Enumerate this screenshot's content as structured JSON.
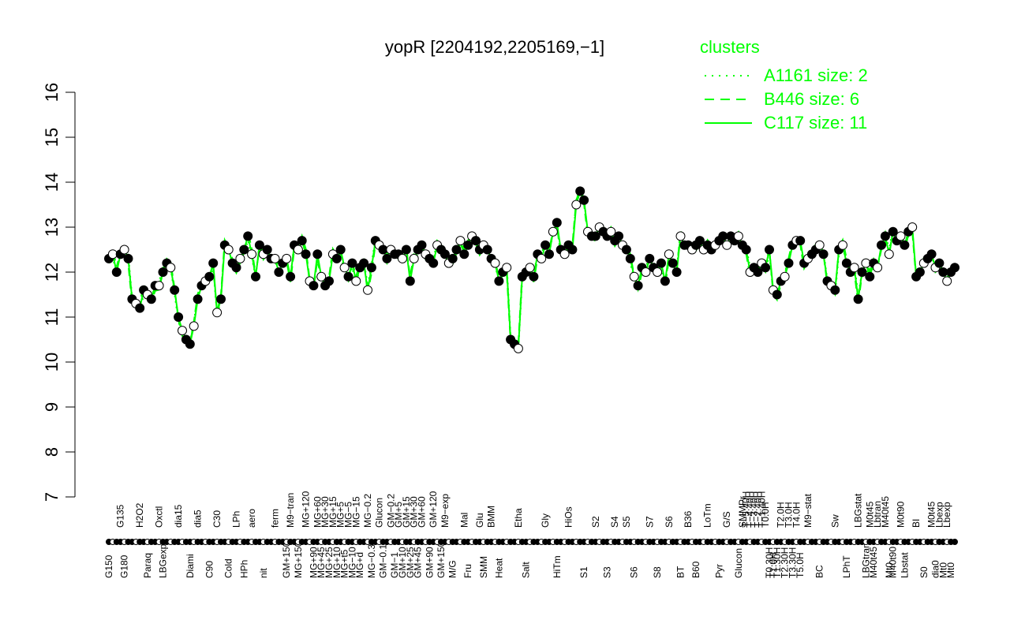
{
  "chart_data": {
    "type": "line",
    "title": "yopR [2204192,2205169,−1]",
    "xlabel": "",
    "ylabel": "",
    "ylim": [
      7,
      16
    ],
    "yticks": [
      7,
      8,
      9,
      10,
      11,
      12,
      13,
      14,
      15,
      16
    ],
    "grid": false,
    "legend": {
      "title": "clusters",
      "placement": "top-right",
      "entries": [
        {
          "label": "A1161 size: 2",
          "style": "dotted"
        },
        {
          "label": "B446 size: 6",
          "style": "dashed"
        },
        {
          "label": "C117 size: 11",
          "style": "solid"
        }
      ]
    },
    "colors": {
      "line": "#00ff00",
      "legend": "#00ff00",
      "points": "#000000"
    },
    "category_labels": [
      {
        "label": "G150",
        "i": 0,
        "row": 1
      },
      {
        "label": "G135",
        "i": 3,
        "row": 0
      },
      {
        "label": "G180",
        "i": 4,
        "row": 1
      },
      {
        "label": "H2O2",
        "i": 8,
        "row": 0
      },
      {
        "label": "Paraq",
        "i": 10,
        "row": 1
      },
      {
        "label": "Oxctl",
        "i": 13,
        "row": 0
      },
      {
        "label": "LBGexp",
        "i": 14,
        "row": 1
      },
      {
        "label": "dia15",
        "i": 18,
        "row": 0
      },
      {
        "label": "Diami",
        "i": 21,
        "row": 1
      },
      {
        "label": "dia5",
        "i": 23,
        "row": 0
      },
      {
        "label": "C90",
        "i": 26,
        "row": 1
      },
      {
        "label": "C30",
        "i": 28,
        "row": 0
      },
      {
        "label": "Cold",
        "i": 31,
        "row": 1
      },
      {
        "label": "LPh",
        "i": 33,
        "row": 0
      },
      {
        "label": "HPh",
        "i": 35,
        "row": 1
      },
      {
        "label": "aero",
        "i": 37,
        "row": 0
      },
      {
        "label": "nit",
        "i": 40,
        "row": 1
      },
      {
        "label": "ferm",
        "i": 43,
        "row": 0
      },
      {
        "label": "GM+150",
        "i": 46,
        "row": 1
      },
      {
        "label": "M9−tran",
        "i": 47,
        "row": 0
      },
      {
        "label": "MG+150",
        "i": 49,
        "row": 1
      },
      {
        "label": "MG+120",
        "i": 51,
        "row": 0
      },
      {
        "label": "MG+90",
        "i": 53,
        "row": 1
      },
      {
        "label": "MG+60",
        "i": 54,
        "row": 0
      },
      {
        "label": "MG+45",
        "i": 55,
        "row": 1
      },
      {
        "label": "MG+30",
        "i": 56,
        "row": 0
      },
      {
        "label": "MG+25",
        "i": 57,
        "row": 1
      },
      {
        "label": "MG+15",
        "i": 58,
        "row": 0
      },
      {
        "label": "MG+10",
        "i": 59,
        "row": 1
      },
      {
        "label": "MG+5",
        "i": 60,
        "row": 0
      },
      {
        "label": "MG+t5",
        "i": 61,
        "row": 1
      },
      {
        "label": "MG−5",
        "i": 62,
        "row": 0
      },
      {
        "label": "MG−10",
        "i": 63,
        "row": 1
      },
      {
        "label": "MG−15",
        "i": 64,
        "row": 0
      },
      {
        "label": "MG+d",
        "i": 65,
        "row": 1
      },
      {
        "label": "MG−0.2",
        "i": 67,
        "row": 0
      },
      {
        "label": "MG−0.3",
        "i": 68,
        "row": 1
      },
      {
        "label": "Glucon",
        "i": 70,
        "row": 0
      },
      {
        "label": "GM−0.1",
        "i": 71,
        "row": 1
      },
      {
        "label": "GM−0.2",
        "i": 73,
        "row": 0
      },
      {
        "label": "GM−1",
        "i": 74,
        "row": 1
      },
      {
        "label": "GM+5",
        "i": 75,
        "row": 0
      },
      {
        "label": "GM+10",
        "i": 76,
        "row": 1
      },
      {
        "label": "GM+15",
        "i": 77,
        "row": 0
      },
      {
        "label": "GM+25",
        "i": 78,
        "row": 1
      },
      {
        "label": "GM+30",
        "i": 79,
        "row": 0
      },
      {
        "label": "GM+45",
        "i": 80,
        "row": 1
      },
      {
        "label": "GM+60",
        "i": 81,
        "row": 0
      },
      {
        "label": "GM+90",
        "i": 83,
        "row": 1
      },
      {
        "label": "GM+120",
        "i": 84,
        "row": 0
      },
      {
        "label": "GM+150",
        "i": 86,
        "row": 1
      },
      {
        "label": "M9−exp",
        "i": 87,
        "row": 0
      },
      {
        "label": "M/G",
        "i": 89,
        "row": 1
      },
      {
        "label": "Mal",
        "i": 92,
        "row": 0
      },
      {
        "label": "Fru",
        "i": 93,
        "row": 1
      },
      {
        "label": "Glu",
        "i": 96,
        "row": 0
      },
      {
        "label": "SMM",
        "i": 97,
        "row": 1
      },
      {
        "label": "BMM",
        "i": 99,
        "row": 0
      },
      {
        "label": "Heat",
        "i": 101,
        "row": 1
      },
      {
        "label": "Etha",
        "i": 106,
        "row": 0
      },
      {
        "label": "Salt",
        "i": 108,
        "row": 1
      },
      {
        "label": "Gly",
        "i": 113,
        "row": 0
      },
      {
        "label": "HiTm",
        "i": 116,
        "row": 1
      },
      {
        "label": "HiOs",
        "i": 119,
        "row": 0
      },
      {
        "label": "S1",
        "i": 123,
        "row": 1
      },
      {
        "label": "S2",
        "i": 126,
        "row": 0
      },
      {
        "label": "S3",
        "i": 129,
        "row": 1
      },
      {
        "label": "S4",
        "i": 131,
        "row": 0
      },
      {
        "label": "S5",
        "i": 134,
        "row": 0
      },
      {
        "label": "S6",
        "i": 136,
        "row": 1
      },
      {
        "label": "S7",
        "i": 140,
        "row": 0
      },
      {
        "label": "S8",
        "i": 142,
        "row": 1
      },
      {
        "label": "S6",
        "i": 145,
        "row": 0
      },
      {
        "label": "BT",
        "i": 148,
        "row": 1
      },
      {
        "label": "B36",
        "i": 150,
        "row": 0
      },
      {
        "label": "B60",
        "i": 152,
        "row": 1
      },
      {
        "label": "LoTm",
        "i": 155,
        "row": 0
      },
      {
        "label": "Pyr",
        "i": 158,
        "row": 1
      },
      {
        "label": "G/S",
        "i": 160,
        "row": 0
      },
      {
        "label": "Glucon",
        "i": 163,
        "row": 1
      },
      {
        "label": "SMMPr",
        "i": 164,
        "row": 0
      },
      {
        "label": "T−5.40H",
        "i": 165,
        "row": 0
      },
      {
        "label": "T−4.40H",
        "i": 166,
        "row": 0
      },
      {
        "label": "T−3.40H",
        "i": 167,
        "row": 0
      },
      {
        "label": "T−2.40H",
        "i": 168,
        "row": 0
      },
      {
        "label": "T−1.40H",
        "i": 169,
        "row": 0
      },
      {
        "label": "T0.0H",
        "i": 170,
        "row": 0
      },
      {
        "label": "T0.30H",
        "i": 171,
        "row": 1
      },
      {
        "label": "T1.0H",
        "i": 172,
        "row": 1
      },
      {
        "label": "T1.30H",
        "i": 173,
        "row": 1
      },
      {
        "label": "T2.0H",
        "i": 174,
        "row": 0
      },
      {
        "label": "T2.30H",
        "i": 175,
        "row": 1
      },
      {
        "label": "T3.0H",
        "i": 176,
        "row": 0
      },
      {
        "label": "T3.30H",
        "i": 177,
        "row": 1
      },
      {
        "label": "T4.0H",
        "i": 178,
        "row": 0
      },
      {
        "label": "T5.0H",
        "i": 179,
        "row": 1
      },
      {
        "label": "M9−stat",
        "i": 181,
        "row": 0
      },
      {
        "label": "BC",
        "i": 184,
        "row": 1
      },
      {
        "label": "Sw",
        "i": 188,
        "row": 0
      },
      {
        "label": "LPhT",
        "i": 191,
        "row": 1
      },
      {
        "label": "LBGstat",
        "i": 194,
        "row": 0
      },
      {
        "label": "LBGtran",
        "i": 196,
        "row": 1
      },
      {
        "label": "M0t45",
        "i": 197,
        "row": 0
      },
      {
        "label": "M40t45",
        "i": 198,
        "row": 1
      },
      {
        "label": "Lbtran",
        "i": 199,
        "row": 0
      },
      {
        "label": "M40t45",
        "i": 201,
        "row": 0
      },
      {
        "label": "Mt0",
        "i": 202,
        "row": 1
      },
      {
        "label": "M40t90",
        "i": 203,
        "row": 1
      },
      {
        "label": "M0t90",
        "i": 205,
        "row": 0
      },
      {
        "label": "Lbstat",
        "i": 206,
        "row": 1
      },
      {
        "label": "BI",
        "i": 209,
        "row": 0
      },
      {
        "label": "S0",
        "i": 211,
        "row": 1
      },
      {
        "label": "M0t45",
        "i": 213,
        "row": 0
      },
      {
        "label": "dia0",
        "i": 214,
        "row": 1
      },
      {
        "label": "Lbexp",
        "i": 215,
        "row": 0
      },
      {
        "label": "Mt0",
        "i": 216,
        "row": 1
      },
      {
        "label": "Lbexp",
        "i": 217,
        "row": 0
      },
      {
        "label": "Mt0",
        "i": 218,
        "row": 1
      }
    ],
    "series": [
      {
        "name": "",
        "values": [
          12.3,
          12.4,
          12.0,
          12.4,
          12.5,
          12.3,
          11.4,
          11.3,
          11.2,
          11.6,
          11.5,
          11.4,
          11.7,
          11.7,
          12.0,
          12.2,
          12.1,
          11.6,
          11.0,
          10.7,
          10.5,
          10.4,
          10.8,
          11.4,
          11.7,
          11.8,
          11.9,
          12.2,
          11.1,
          11.4,
          12.6,
          12.5,
          12.2,
          12.1,
          12.3,
          12.5,
          12.8,
          12.4,
          11.9,
          12.6,
          12.4,
          12.5,
          12.3,
          12.3,
          12.0,
          12.2,
          12.3,
          11.9,
          12.6,
          12.5,
          12.7,
          12.4,
          11.8,
          11.7,
          12.4,
          11.9,
          11.7,
          11.8,
          12.4,
          12.3,
          12.5,
          12.1,
          11.9,
          12.2,
          11.8,
          12.1,
          12.2,
          11.6,
          12.1,
          12.7,
          12.6,
          12.5,
          12.3,
          12.5,
          12.4,
          12.4,
          12.3,
          12.5,
          11.8,
          12.3,
          12.5,
          12.6,
          12.4,
          12.3,
          12.2,
          12.6,
          12.5,
          12.4,
          12.2,
          12.3,
          12.5,
          12.7,
          12.4,
          12.6,
          12.8,
          12.7,
          12.5,
          12.6,
          12.5,
          12.3,
          12.2,
          11.8,
          12.0,
          12.1,
          10.5,
          10.4,
          10.3,
          11.9,
          12.0,
          12.1,
          11.9,
          12.4,
          12.3,
          12.6,
          12.4,
          12.9,
          13.1,
          12.5,
          12.4,
          12.6,
          12.5,
          13.5,
          13.8,
          13.6,
          12.9,
          12.8,
          12.8,
          13.0,
          12.9,
          12.8,
          12.9,
          12.7,
          12.8,
          12.6,
          12.5,
          12.3,
          11.9,
          11.7,
          12.1,
          12.0,
          12.3,
          12.1,
          12.0,
          12.2,
          11.8,
          12.4,
          12.2,
          12.0,
          12.8,
          12.6,
          12.6,
          12.5,
          12.6,
          12.7,
          12.5,
          12.6,
          12.5,
          12.6,
          12.7,
          12.8,
          12.6,
          12.8,
          12.7,
          12.8,
          12.6,
          12.5,
          12.0,
          12.1,
          12.0,
          12.2,
          12.1,
          12.5,
          11.6,
          11.5,
          11.8,
          11.9,
          12.2,
          12.6,
          12.7,
          12.7,
          12.2,
          12.3,
          12.4,
          12.5,
          12.6,
          12.4,
          11.8,
          11.7,
          11.6,
          12.5,
          12.6,
          12.2,
          12.0,
          12.1,
          11.4,
          12.0,
          12.2,
          11.9,
          12.2,
          12.1,
          12.6,
          12.8,
          12.4,
          12.9,
          12.7,
          12.8,
          12.6,
          12.9,
          13.0,
          11.9,
          12.0,
          12.2,
          12.3,
          12.4,
          12.1,
          12.2,
          12.0,
          11.8,
          12.0,
          12.1
        ]
      }
    ]
  }
}
